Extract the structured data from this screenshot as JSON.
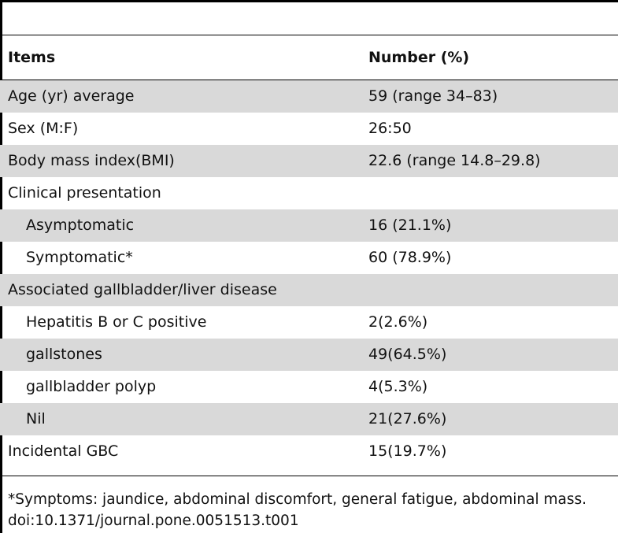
{
  "table": {
    "headers": {
      "items": "Items",
      "number": "Number (%)"
    },
    "rows": [
      {
        "item": "Age (yr) average",
        "value": "59 (range 34–83)"
      },
      {
        "item": "Sex (M:F)",
        "value": "26:50"
      },
      {
        "item": "Body mass index(BMI)",
        "value": "22.6 (range 14.8–29.8)"
      },
      {
        "item": "Clinical presentation",
        "value": ""
      },
      {
        "item": "Asymptomatic",
        "value": "16 (21.1%)"
      },
      {
        "item": "Symptomatic*",
        "value": "60 (78.9%)"
      },
      {
        "item": "Associated gallbladder/liver disease",
        "value": ""
      },
      {
        "item": "Hepatitis B or C positive",
        "value": "2(2.6%)"
      },
      {
        "item": "gallstones",
        "value": "49(64.5%)"
      },
      {
        "item": "gallbladder polyp",
        "value": "4(5.3%)"
      },
      {
        "item": "Nil",
        "value": "21(27.6%)"
      },
      {
        "item": "Incidental GBC",
        "value": "15(19.7%)"
      }
    ]
  },
  "footnote": "*Symptoms: jaundice, abdominal discomfort, general fatigue, abdominal mass.",
  "doi": "doi:10.1371/journal.pone.0051513.t001",
  "colors": {
    "shaded_row": "#d9d9d9",
    "rule": "#000000"
  }
}
